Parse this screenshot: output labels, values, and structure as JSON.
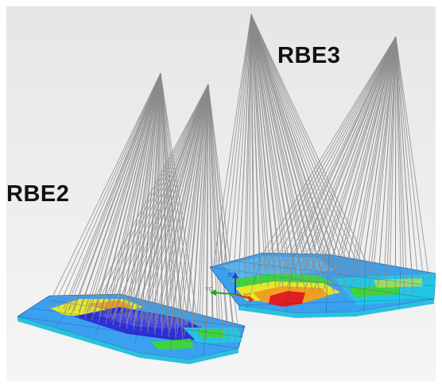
{
  "viewport": {
    "background_top": "#e8e8e8",
    "background_bottom": "#f4f4f4",
    "spoke_color": "#8a8a8a"
  },
  "labels": {
    "rbe2": "RBE2",
    "rbe3": "RBE3"
  },
  "triad": {
    "zc": "ZC",
    "yc": "YC",
    "xc": "XC",
    "colors": {
      "zc": "#2b3bd6",
      "yc": "#2aa02a",
      "xc": "#d63030"
    }
  },
  "contour_colors": {
    "low": "#2b2bd8",
    "cyan": "#21c6e6",
    "light_blue": "#3aa0f0",
    "green": "#3fd43f",
    "yellow": "#e6e62a",
    "orange": "#f0a020",
    "red": "#e02020"
  }
}
